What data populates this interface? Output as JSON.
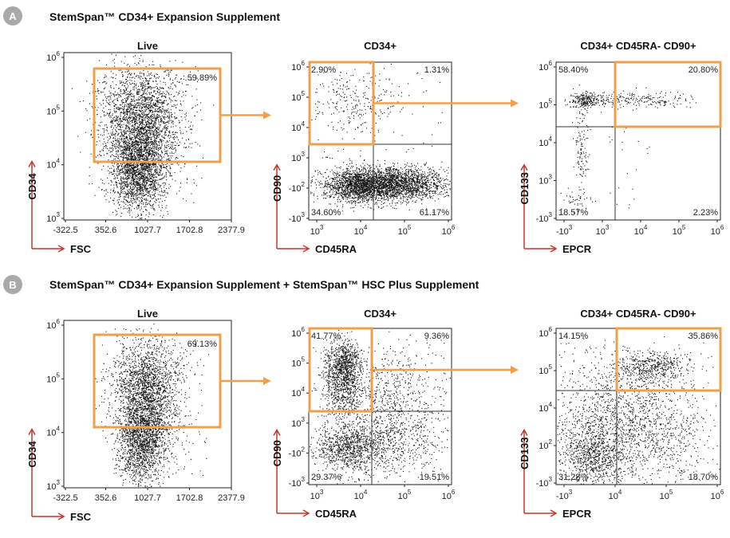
{
  "colors": {
    "gate": "#F0A04B",
    "axis_arrow": "#C0392B",
    "badge": "#A9A9A9",
    "dots": "#111111",
    "quadrant_line": "#333333"
  },
  "chart_data": [
    {
      "panel": "A",
      "title": "StemSpan™ CD34+ Expansion Supplement",
      "plots": [
        {
          "type": "scatter",
          "title": "Live",
          "xlabel": "FSC",
          "ylabel": "CD34",
          "xticks": [
            "-322.5",
            "352.6",
            "1027.7",
            "1702.8",
            "2377.9"
          ],
          "yticks": [
            {
              "base": "10",
              "exp": "3"
            },
            {
              "base": "10",
              "exp": "4"
            },
            {
              "base": "10",
              "exp": "5"
            },
            {
              "base": "10",
              "exp": "6"
            }
          ],
          "gate_percent": "59.89%",
          "quadrants": []
        },
        {
          "type": "scatter",
          "title": "CD34+",
          "xlabel": "CD45RA",
          "ylabel": "CD90",
          "xticks": [
            {
              "base": "10",
              "exp": "3"
            },
            {
              "base": "10",
              "exp": "4"
            },
            {
              "base": "10",
              "exp": "5"
            },
            {
              "base": "10",
              "exp": "6"
            }
          ],
          "yticks": [
            {
              "base": "-10",
              "exp": "3"
            },
            {
              "base": "-10",
              "exp": "2"
            },
            {
              "base": "10",
              "exp": "3"
            },
            {
              "base": "10",
              "exp": "4"
            },
            {
              "base": "10",
              "exp": "5"
            },
            {
              "base": "10",
              "exp": "6"
            }
          ],
          "gate_percent": "",
          "quadrants": {
            "top_left": "2.90%",
            "top_right": "1.31%",
            "bottom_left": "34.60%",
            "bottom_right": "61.17%"
          }
        },
        {
          "type": "scatter",
          "title": "CD34+ CD45RA- CD90+",
          "xlabel": "EPCR",
          "ylabel": "CD133",
          "xticks": [
            {
              "base": "-10",
              "exp": "3"
            },
            {
              "base": "10",
              "exp": "3"
            },
            {
              "base": "10",
              "exp": "4"
            },
            {
              "base": "10",
              "exp": "5"
            },
            {
              "base": "10",
              "exp": "6"
            }
          ],
          "yticks": [
            {
              "base": "-10",
              "exp": "3"
            },
            {
              "base": "10",
              "exp": "3"
            },
            {
              "base": "10",
              "exp": "4"
            },
            {
              "base": "10",
              "exp": "5"
            },
            {
              "base": "10",
              "exp": "6"
            }
          ],
          "gate_percent": "",
          "quadrants": {
            "top_left": "58.40%",
            "top_right": "20.80%",
            "bottom_left": "18.57%",
            "bottom_right": "2.23%"
          }
        }
      ]
    },
    {
      "panel": "B",
      "title": "StemSpan™ CD34+ Expansion Supplement + StemSpan™ HSC Plus Supplement",
      "plots": [
        {
          "type": "scatter",
          "title": "Live",
          "xlabel": "FSC",
          "ylabel": "CD34",
          "xticks": [
            "-322.5",
            "352.6",
            "1027.7",
            "1702.8",
            "2377.9"
          ],
          "yticks": [
            {
              "base": "10",
              "exp": "3"
            },
            {
              "base": "10",
              "exp": "4"
            },
            {
              "base": "10",
              "exp": "5"
            },
            {
              "base": "10",
              "exp": "6"
            }
          ],
          "gate_percent": "69.13%",
          "quadrants": []
        },
        {
          "type": "scatter",
          "title": "CD34+",
          "xlabel": "CD45RA",
          "ylabel": "CD90",
          "xticks": [
            {
              "base": "10",
              "exp": "3"
            },
            {
              "base": "10",
              "exp": "4"
            },
            {
              "base": "10",
              "exp": "5"
            },
            {
              "base": "10",
              "exp": "6"
            }
          ],
          "yticks": [
            {
              "base": "-10",
              "exp": "3"
            },
            {
              "base": "-10",
              "exp": "2"
            },
            {
              "base": "10",
              "exp": "3"
            },
            {
              "base": "10",
              "exp": "4"
            },
            {
              "base": "10",
              "exp": "5"
            },
            {
              "base": "10",
              "exp": "6"
            }
          ],
          "gate_percent": "",
          "quadrants": {
            "top_left": "41.77%",
            "top_right": "9.36%",
            "bottom_left": "29.37%",
            "bottom_right": "19.51%"
          }
        },
        {
          "type": "scatter",
          "title": "CD34+ CD45RA- CD90+",
          "xlabel": "EPCR",
          "ylabel": "CD133",
          "xticks": [
            {
              "base": "-10",
              "exp": "3"
            },
            {
              "base": "10",
              "exp": "4"
            },
            {
              "base": "10",
              "exp": "5"
            },
            {
              "base": "10",
              "exp": "6"
            }
          ],
          "yticks": [
            {
              "base": "-10",
              "exp": "3"
            },
            {
              "base": "10",
              "exp": "2"
            },
            {
              "base": "10",
              "exp": "4"
            },
            {
              "base": "10",
              "exp": "5"
            },
            {
              "base": "10",
              "exp": "6"
            }
          ],
          "gate_percent": "",
          "quadrants": {
            "top_left": "14.15%",
            "top_right": "35.86%",
            "bottom_left": "31.28%",
            "bottom_right": "18.70%"
          }
        }
      ]
    }
  ]
}
